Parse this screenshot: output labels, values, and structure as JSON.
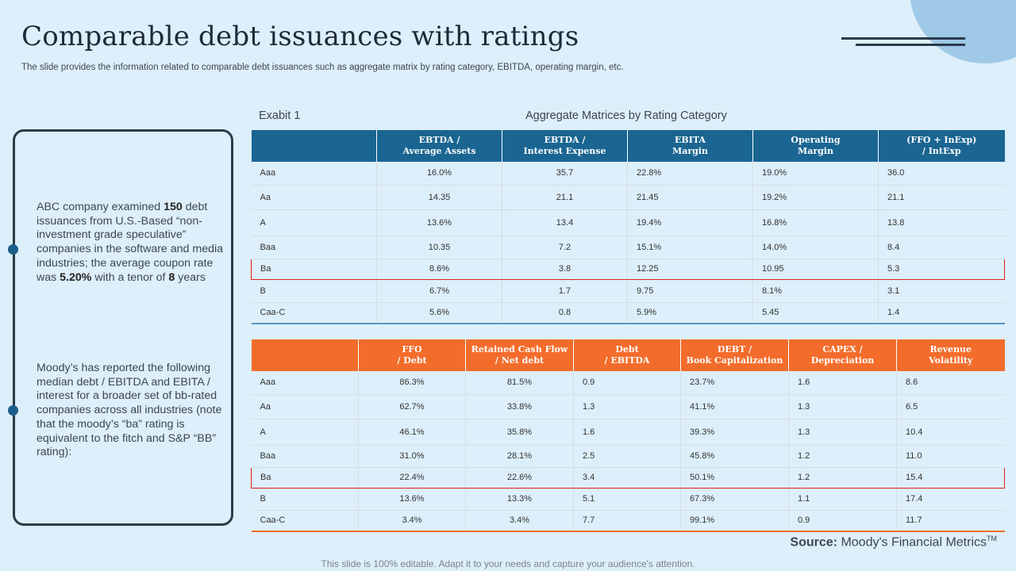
{
  "title": "Comparable debt issuances with ratings",
  "subtitle": "The slide provides the information related to comparable debt issuances such as aggregate matrix by rating category, EBITDA, operating margin, etc.",
  "sidebar": {
    "p1": {
      "t1": "ABC company examined ",
      "b1": "150",
      "t2": " debt issuances from U.S.-Based “non-investment grade speculative” companies in the software and media industries; the average coupon rate was ",
      "b2": "5.20%",
      "t3": " with a tenor of ",
      "b3": "8",
      "t4": " years"
    },
    "p2": "Moody’s has reported the following median debt / EBITDA and EBITA / interest for a broader set of bb-rated companies across all industries (note that the moody’s “ba” rating is equivalent to the fitch and S&P “BB” rating):"
  },
  "exhibit_label": "Exabit 1",
  "matrix_title": "Aggregate Matrices by Rating Category",
  "table1": {
    "headers": [
      [
        "EBTDA /",
        "Average Assets"
      ],
      [
        "EBTDA /",
        "Interest Expense"
      ],
      [
        "EBITA",
        "Margin"
      ],
      [
        "Operating",
        "Margin"
      ],
      [
        "(FFO + InExp)",
        "/ IntExp"
      ]
    ],
    "highlight_row": "Ba",
    "rows": [
      {
        "rating": "Aaa",
        "cells": [
          "16.0%",
          "35.7",
          "22.8%",
          "19.0%",
          "36.0"
        ]
      },
      {
        "rating": "Aa",
        "cells": [
          "14.35",
          "21.1",
          "21.45",
          "19.2%",
          "21.1"
        ]
      },
      {
        "rating": "A",
        "cells": [
          "13.6%",
          "13.4",
          "19.4%",
          "16.8%",
          "13.8"
        ]
      },
      {
        "rating": "Baa",
        "cells": [
          "10.35",
          "7.2",
          "15.1%",
          "14.0%",
          "8.4"
        ]
      },
      {
        "rating": "Ba",
        "cells": [
          "8.6%",
          "3.8",
          "12.25",
          "10.95",
          "5.3"
        ]
      },
      {
        "rating": "B",
        "cells": [
          "6.7%",
          "1.7",
          "9.75",
          "8.1%",
          "3.1"
        ]
      },
      {
        "rating": "Caa-C",
        "cells": [
          "5.6%",
          "0.8",
          "5.9%",
          "5.45",
          "1.4"
        ]
      }
    ]
  },
  "table2": {
    "headers": [
      [
        "FFO",
        "/ Debt"
      ],
      [
        "Retained Cash Flow",
        "/ Net debt"
      ],
      [
        "Debt",
        "/ EBITDA"
      ],
      [
        "DEBT /",
        "Book Capitalization"
      ],
      [
        "CAPEX /",
        "Depreciation"
      ],
      [
        "Revenue",
        "Volatility"
      ]
    ],
    "highlight_row": "Ba",
    "rows": [
      {
        "rating": "Aaa",
        "cells": [
          "86.3%",
          "81.5%",
          "0.9",
          "23.7%",
          "1.6",
          "8.6"
        ]
      },
      {
        "rating": "Aa",
        "cells": [
          "62.7%",
          "33.8%",
          "1.3",
          "41.1%",
          "1.3",
          "6.5"
        ]
      },
      {
        "rating": "A",
        "cells": [
          "46.1%",
          "35.8%",
          "1.6",
          "39.3%",
          "1.3",
          "10.4"
        ]
      },
      {
        "rating": "Baa",
        "cells": [
          "31.0%",
          "28.1%",
          "2.5",
          "45.8%",
          "1.2",
          "11.0"
        ]
      },
      {
        "rating": "Ba",
        "cells": [
          "22.4%",
          "22.6%",
          "3.4",
          "50.1%",
          "1.2",
          "15.4"
        ]
      },
      {
        "rating": "B",
        "cells": [
          "13.6%",
          "13.3%",
          "5.1",
          "67.3%",
          "1.1",
          "17.4"
        ]
      },
      {
        "rating": "Caa-C",
        "cells": [
          "3.4%",
          "3.4%",
          "7.7",
          "99.1%",
          "0.9",
          "11.7"
        ]
      }
    ]
  },
  "source": {
    "label": "Source:",
    "text": " Moody's Financial Metrics",
    "tm": "TM"
  },
  "footer": "This slide is 100% editable. Adapt it to your needs and capture your audience's attention.",
  "colors": {
    "table1_header": "#1a6592",
    "table2_header": "#f36c2b",
    "highlight_border": "#e02020",
    "background": "#ddeffa"
  }
}
